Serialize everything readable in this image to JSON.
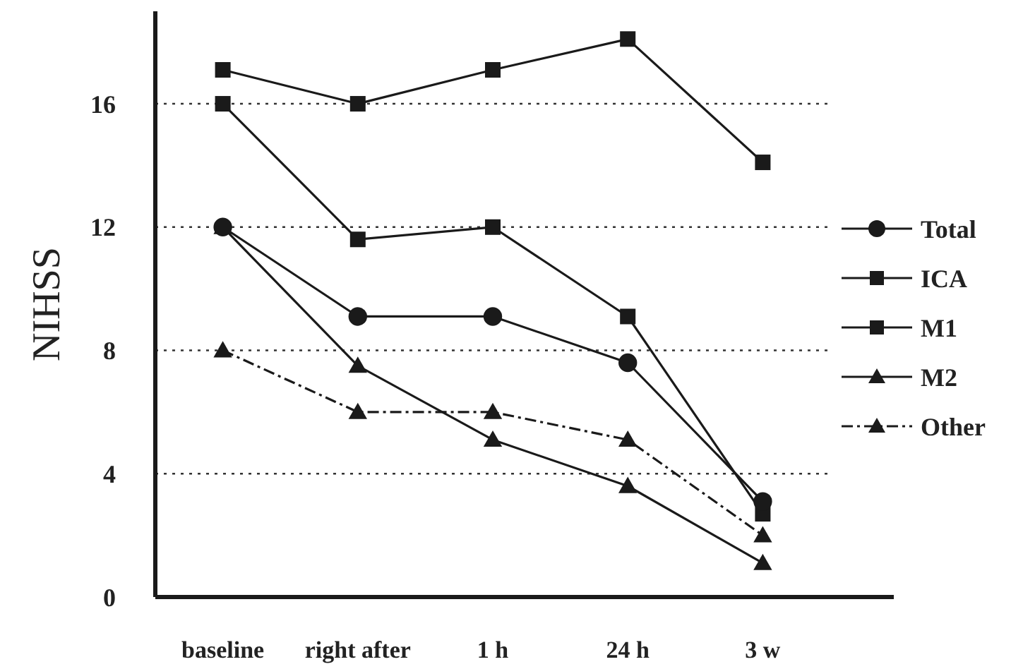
{
  "chart_data": {
    "type": "line",
    "ylabel": "NIHSS",
    "categories": [
      "baseline",
      "right after",
      "1 h",
      "24 h",
      "3 w"
    ],
    "ylim": [
      0,
      19
    ],
    "yticks": [
      0,
      4,
      8,
      12,
      16
    ],
    "grid": "y",
    "legend": "right",
    "series": [
      {
        "name": "Total",
        "color": "#1a1a1a",
        "marker": "circle",
        "values": [
          12,
          9.1,
          9.1,
          7.6,
          3.1
        ]
      },
      {
        "name": "ICA",
        "color": "#1a1a1a",
        "marker": "square",
        "values": [
          17.1,
          16,
          17.1,
          18.1,
          14.1
        ]
      },
      {
        "name": "M1",
        "color": "#1a1a1a",
        "marker": "square",
        "values": [
          16,
          11.6,
          12,
          9.1,
          2.7
        ]
      },
      {
        "name": "M2",
        "color": "#1a1a1a",
        "marker": "triangle",
        "values": [
          12,
          7.5,
          5.1,
          3.6,
          1.1
        ]
      },
      {
        "name": "Other",
        "color": "#1a1a1a",
        "marker": "triangle",
        "line_style": "dashed",
        "values": [
          8,
          6,
          6,
          5.1,
          2
        ]
      }
    ]
  }
}
